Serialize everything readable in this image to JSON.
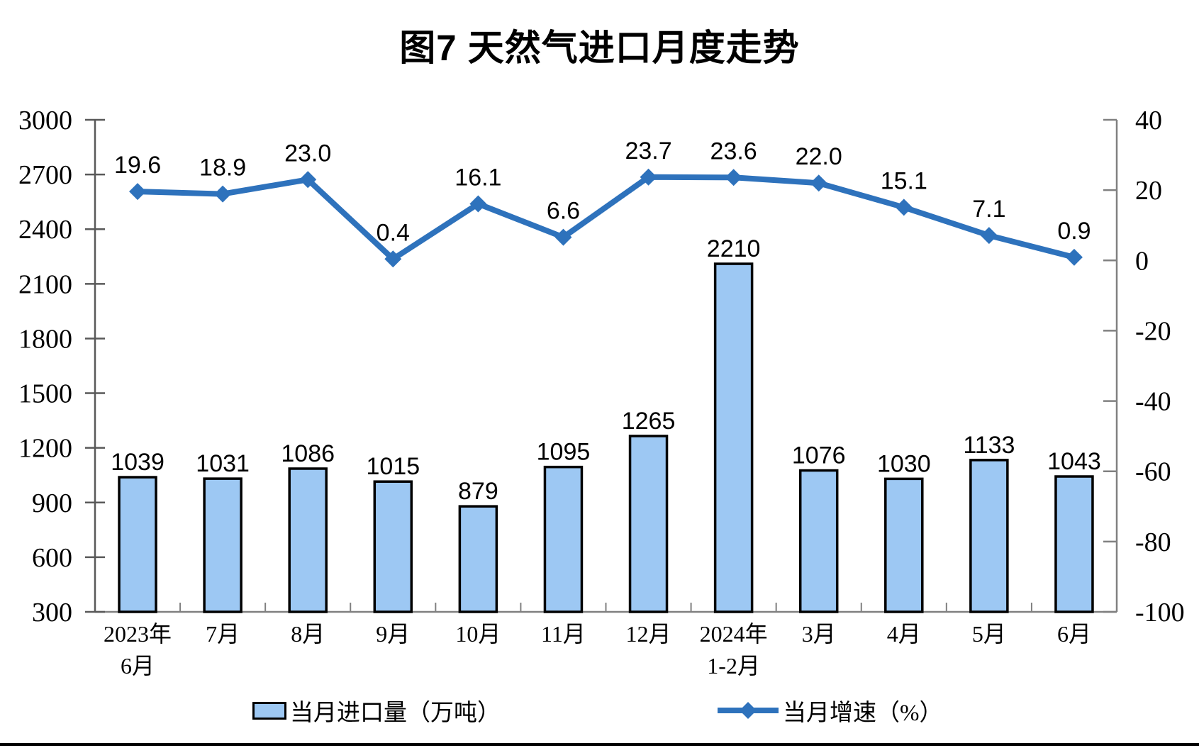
{
  "title": "图7 天然气进口月度走势",
  "legend": {
    "bar_label": "当月进口量（万吨）",
    "line_label": "当月增速（%）"
  },
  "chart_data": {
    "type": "combo-bar-line",
    "title": "图7 天然气进口月度走势",
    "categories": [
      "2023年\n6月",
      "7月",
      "8月",
      "9月",
      "10月",
      "11月",
      "12月",
      "2024年\n1-2月",
      "3月",
      "4月",
      "5月",
      "6月"
    ],
    "series": [
      {
        "name": "当月进口量（万吨）",
        "type": "bar",
        "y_axis": "left",
        "color": "#9DC8F3",
        "border_color": "#000000",
        "values": [
          1039,
          1031,
          1086,
          1015,
          879,
          1095,
          1265,
          2210,
          1076,
          1030,
          1133,
          1043
        ]
      },
      {
        "name": "当月增速（%）",
        "type": "line",
        "y_axis": "right",
        "color": "#2E72BC",
        "marker": "diamond",
        "values": [
          19.6,
          18.9,
          23.0,
          0.4,
          16.1,
          6.6,
          23.7,
          23.6,
          22.0,
          15.1,
          7.1,
          0.9
        ]
      }
    ],
    "left_axis": {
      "min": 300,
      "max": 3000,
      "step": 300,
      "ticks": [
        300,
        600,
        900,
        1200,
        1500,
        1800,
        2100,
        2400,
        2700,
        3000
      ]
    },
    "right_axis": {
      "min": -100,
      "max": 40,
      "step": 20,
      "ticks": [
        -100,
        -80,
        -60,
        -40,
        -20,
        0,
        20,
        40
      ]
    },
    "grid": false,
    "legend_position": "bottom",
    "bar_label_format": "integer",
    "line_label_format": "one_decimal"
  }
}
